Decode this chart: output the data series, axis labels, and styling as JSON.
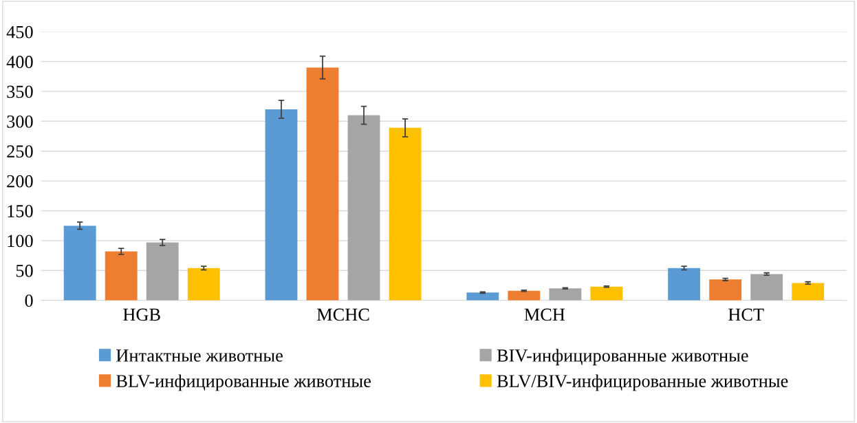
{
  "chart_data": {
    "type": "bar",
    "categories": [
      "HGB",
      "MCHC",
      "MCH",
      "HCT"
    ],
    "series": [
      {
        "name": "Интактные животные",
        "color": "#5b9bd5",
        "values": [
          125,
          320,
          13,
          54
        ],
        "errors": [
          6,
          15,
          1,
          3
        ]
      },
      {
        "name": "BLV-инфицированные животные",
        "color": "#ed7d31",
        "values": [
          82,
          390,
          16,
          35
        ],
        "errors": [
          5,
          19,
          1,
          2
        ]
      },
      {
        "name": "BIV-инфицированные животные",
        "color": "#a5a5a5",
        "values": [
          97,
          310,
          20,
          44
        ],
        "errors": [
          5,
          15,
          1,
          2
        ]
      },
      {
        "name": "BLV/BIV-инфицированные животные",
        "color": "#ffc000",
        "values": [
          54,
          289,
          23,
          29
        ],
        "errors": [
          3,
          15,
          1,
          2
        ]
      }
    ],
    "ylim": [
      0,
      450
    ],
    "yticks": [
      0,
      50,
      100,
      150,
      200,
      250,
      300,
      350,
      400,
      450
    ],
    "grid": "y",
    "legend": "bottom"
  }
}
